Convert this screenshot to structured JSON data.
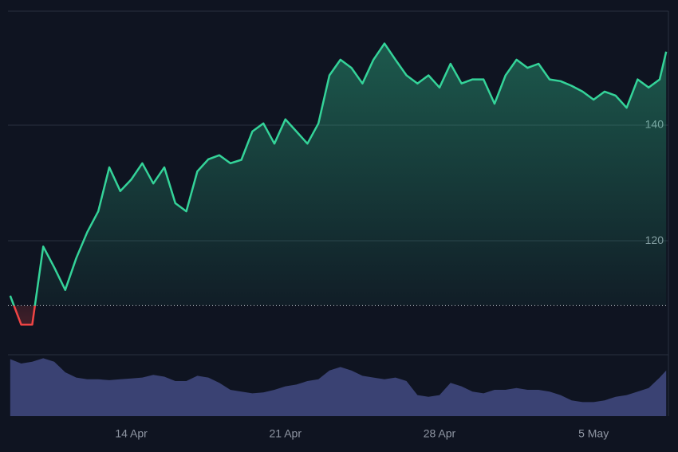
{
  "chart_data": {
    "type": "baseline",
    "x": [
      8.5,
      9,
      9.5,
      10,
      10.5,
      11,
      11.5,
      12,
      12.5,
      13,
      13.5,
      14,
      14.5,
      15,
      15.5,
      16,
      16.5,
      17,
      17.5,
      18,
      18.5,
      19,
      19.5,
      20,
      20.5,
      21,
      21.5,
      22,
      22.5,
      23,
      23.5,
      24,
      24.5,
      25,
      25.5,
      26,
      26.5,
      27,
      27.5,
      28,
      28.5,
      29,
      29.5,
      30,
      30.5,
      31,
      31.5,
      32,
      32.5,
      33,
      33.5,
      34,
      34.5,
      35,
      35.5,
      36,
      36.5,
      37,
      37.5,
      38,
      38.3
    ],
    "values": [
      110.5,
      105.5,
      105.5,
      119,
      115.4,
      111.5,
      117,
      121.5,
      125.1,
      132.7,
      128.6,
      130.6,
      133.4,
      129.9,
      132.7,
      126.5,
      125.1,
      132,
      134.1,
      134.8,
      133.4,
      134,
      138.9,
      140.3,
      136.8,
      141,
      138.9,
      136.8,
      140.3,
      148.6,
      151.3,
      149.9,
      147.2,
      151.3,
      154.1,
      151.3,
      148.6,
      147.2,
      148.6,
      146.5,
      150.6,
      147.2,
      147.9,
      147.9,
      143.7,
      148.6,
      151.3,
      149.9,
      150.6,
      147.9,
      147.6,
      146.8,
      145.8,
      144.4,
      145.8,
      145.1,
      143,
      147.9,
      146.5,
      147.9,
      152.7
    ],
    "volume": [
      65,
      60,
      62,
      66,
      62,
      50,
      44,
      42,
      42,
      41,
      42,
      43,
      44,
      47,
      45,
      40,
      40,
      46,
      44,
      38,
      30,
      28,
      26,
      27,
      30,
      34,
      36,
      40,
      42,
      52,
      56,
      52,
      46,
      44,
      42,
      44,
      40,
      24,
      22,
      24,
      38,
      34,
      28,
      26,
      30,
      30,
      32,
      30,
      30,
      28,
      24,
      18,
      16,
      16,
      18,
      22,
      24,
      28,
      32,
      44,
      52
    ],
    "volume_lim": [
      0,
      70
    ],
    "baseline": 108.8,
    "color_up": "#34d399",
    "color_down": "#ef4444",
    "volume_color": "#3a4273",
    "xlim": [
      8.4,
      38.4
    ],
    "xticks": [
      {
        "value": 14,
        "label": "14 Apr"
      },
      {
        "value": 21,
        "label": "21 Apr"
      },
      {
        "value": 28,
        "label": "28 Apr"
      },
      {
        "value": 35,
        "label": "5 May"
      }
    ],
    "ylim": [
      100.3,
      159.7
    ],
    "yticks": [
      120,
      140
    ],
    "grid": true
  }
}
